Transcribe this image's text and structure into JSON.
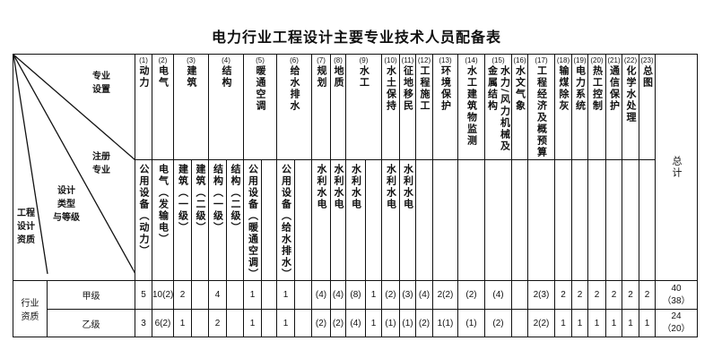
{
  "title": "电力行业工程设计主要专业技术人员配备表",
  "corner": {
    "specialty": [
      "专业",
      "设置"
    ],
    "registered": [
      "注册",
      "专业"
    ],
    "design_type": [
      "设计",
      "类型",
      "与等级"
    ],
    "qualification": [
      "工程",
      "设计",
      "资质"
    ]
  },
  "groups": [
    {
      "num": "(1)",
      "name": "动力",
      "span": 1
    },
    {
      "num": "(2)",
      "name": "电气",
      "span": 1
    },
    {
      "num": "(3)",
      "name": "建筑",
      "span": 2
    },
    {
      "num": "(4)",
      "name": "结构",
      "span": 2
    },
    {
      "num": "(5)",
      "name": "暖通空调",
      "span": 2
    },
    {
      "num": "(6)",
      "name": "给水排水",
      "span": 2
    },
    {
      "num": "(7)",
      "name": "规划",
      "span": 1
    },
    {
      "num": "(8)",
      "name": "地质",
      "span": 1
    },
    {
      "num": "(9)",
      "name": "水工",
      "span": 2
    },
    {
      "num": "(10)",
      "name": "水土保持",
      "span": 1
    },
    {
      "num": "(11)",
      "name": "征地移民",
      "span": 1
    },
    {
      "num": "(12)",
      "name": "工程施工",
      "span": 1
    },
    {
      "num": "(13)",
      "name": "环境保护",
      "span": 1
    },
    {
      "num": "(14)",
      "name": "水工建筑物监测",
      "span": 1
    },
    {
      "num": "(15)",
      "name": "水力/风力机械及",
      "extra": "金属结构",
      "span": 1
    },
    {
      "num": "(16)",
      "name": "水文气象",
      "span": 1
    },
    {
      "num": "(17)",
      "name": "工程经济及概预算",
      "span": 1
    },
    {
      "num": "(18)",
      "name": "输煤除灰",
      "span": 1
    },
    {
      "num": "(19)",
      "name": "电力系统",
      "span": 1
    },
    {
      "num": "(20)",
      "name": "热工控制",
      "span": 1
    },
    {
      "num": "(21)",
      "name": "通信保护",
      "span": 1
    },
    {
      "num": "(22)",
      "name": "化学水处理",
      "span": 1
    },
    {
      "num": "(23)",
      "name": "总图",
      "span": 1
    }
  ],
  "total_label": "总计",
  "registered": [
    "公用设备（动力）",
    "电气（发输电）",
    "建筑（一级）",
    "建筑（二级）",
    "结构（一级）",
    "结构（二级）",
    "公用设备（暖通空调）",
    "",
    "公用设备（给水排水）",
    "",
    "水利水电",
    "水利水电",
    "水利水电",
    "",
    "水利水电",
    "水利水电",
    "",
    "",
    "",
    "",
    "",
    "",
    "",
    "",
    "",
    "",
    "",
    ""
  ],
  "row_group": [
    "行业",
    "资质"
  ],
  "rows": [
    {
      "grade": "甲级",
      "values": [
        "5",
        "10(2)",
        "2",
        "",
        "4",
        "",
        "1",
        "",
        "1",
        "",
        "(4)",
        "(4)",
        "(8)",
        "1",
        "(2)",
        "(3)",
        "(4)",
        "2(2)",
        "(2)",
        "(4)",
        "",
        "2(3)",
        "2",
        "2",
        "2",
        "2",
        "2",
        "2"
      ],
      "total": "40",
      "total_sub": "（38）"
    },
    {
      "grade": "乙级",
      "values": [
        "3",
        "6(2)",
        "1",
        "",
        "2",
        "",
        "1",
        "",
        "1",
        "",
        "(2)",
        "(2)",
        "(4)",
        "1",
        "(1)",
        "(1)",
        "(2)",
        "1(1)",
        "(1)",
        "(2)",
        "",
        "2(2)",
        "1",
        "1",
        "1",
        "1",
        "1",
        "1"
      ],
      "total": "24",
      "total_sub": "（20）"
    }
  ]
}
